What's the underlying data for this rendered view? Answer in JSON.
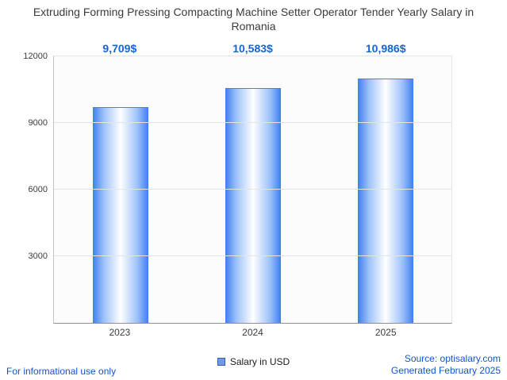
{
  "title": "Extruding Forming Pressing Compacting Machine Setter Operator Tender Yearly Salary in Romania",
  "chart_data": {
    "type": "bar",
    "categories": [
      "2023",
      "2024",
      "2025"
    ],
    "values": [
      9709,
      10583,
      10986
    ],
    "value_labels": [
      "9,709$",
      "10,583$",
      "10,986$"
    ],
    "ylim": [
      0,
      12000
    ],
    "yticks": [
      3000,
      6000,
      9000,
      12000
    ],
    "legend": "Salary in USD",
    "grid": true,
    "bar_color_edge": "#3f7ef0",
    "bar_color_center": "#ffffff",
    "value_label_color": "#1464d2",
    "legend_position": "bottom"
  },
  "footer": {
    "disclaimer": "For informational use only",
    "source": "Source: optisalary.com",
    "generated": "Generated February 2025"
  }
}
